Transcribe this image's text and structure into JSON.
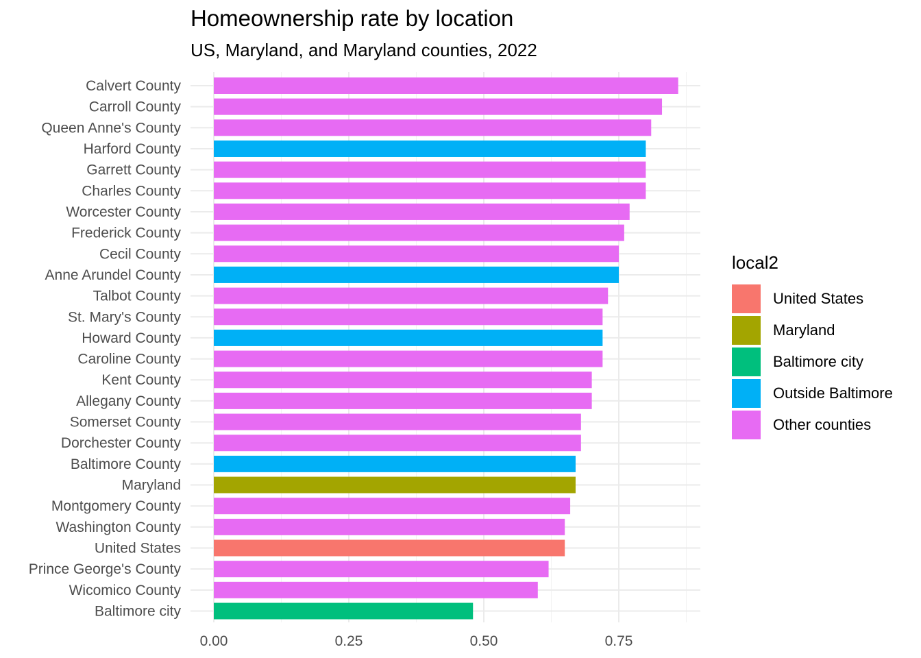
{
  "chart_data": {
    "type": "bar",
    "orientation": "horizontal",
    "title": "Homeownership rate by location",
    "subtitle": "US, Maryland, and Maryland counties, 2022",
    "xlabel": "",
    "ylabel": "",
    "xlim": [
      0,
      0.9
    ],
    "x_ticks": [
      0.0,
      0.25,
      0.5,
      0.75
    ],
    "x_tick_labels": [
      "0.00",
      "0.25",
      "0.50",
      "0.75"
    ],
    "grid": true,
    "legend": {
      "title": "local2",
      "position": "right",
      "entries": [
        {
          "name": "United States",
          "color": "#F8766D"
        },
        {
          "name": "Maryland",
          "color": "#A3A500"
        },
        {
          "name": "Baltimore city",
          "color": "#00BF7D"
        },
        {
          "name": "Outside Baltimore",
          "color": "#00B0F6"
        },
        {
          "name": "Other counties",
          "color": "#E76BF3"
        }
      ]
    },
    "bars": [
      {
        "label": "Calvert County",
        "value": 0.86,
        "group": "Other counties"
      },
      {
        "label": "Carroll County",
        "value": 0.83,
        "group": "Other counties"
      },
      {
        "label": "Queen Anne's County",
        "value": 0.81,
        "group": "Other counties"
      },
      {
        "label": "Harford County",
        "value": 0.8,
        "group": "Outside Baltimore"
      },
      {
        "label": "Garrett County",
        "value": 0.8,
        "group": "Other counties"
      },
      {
        "label": "Charles County",
        "value": 0.8,
        "group": "Other counties"
      },
      {
        "label": "Worcester County",
        "value": 0.77,
        "group": "Other counties"
      },
      {
        "label": "Frederick County",
        "value": 0.76,
        "group": "Other counties"
      },
      {
        "label": "Cecil County",
        "value": 0.75,
        "group": "Other counties"
      },
      {
        "label": "Anne Arundel County",
        "value": 0.75,
        "group": "Outside Baltimore"
      },
      {
        "label": "Talbot County",
        "value": 0.73,
        "group": "Other counties"
      },
      {
        "label": "St. Mary's County",
        "value": 0.72,
        "group": "Other counties"
      },
      {
        "label": "Howard County",
        "value": 0.72,
        "group": "Outside Baltimore"
      },
      {
        "label": "Caroline County",
        "value": 0.72,
        "group": "Other counties"
      },
      {
        "label": "Kent County",
        "value": 0.7,
        "group": "Other counties"
      },
      {
        "label": "Allegany County",
        "value": 0.7,
        "group": "Other counties"
      },
      {
        "label": "Somerset County",
        "value": 0.68,
        "group": "Other counties"
      },
      {
        "label": "Dorchester County",
        "value": 0.68,
        "group": "Other counties"
      },
      {
        "label": "Baltimore County",
        "value": 0.67,
        "group": "Outside Baltimore"
      },
      {
        "label": "Maryland",
        "value": 0.67,
        "group": "Maryland"
      },
      {
        "label": "Montgomery County",
        "value": 0.66,
        "group": "Other counties"
      },
      {
        "label": "Washington County",
        "value": 0.65,
        "group": "Other counties"
      },
      {
        "label": "United States",
        "value": 0.65,
        "group": "United States"
      },
      {
        "label": "Prince George's County",
        "value": 0.62,
        "group": "Other counties"
      },
      {
        "label": "Wicomico County",
        "value": 0.6,
        "group": "Other counties"
      },
      {
        "label": "Baltimore city",
        "value": 0.48,
        "group": "Baltimore city"
      }
    ]
  }
}
